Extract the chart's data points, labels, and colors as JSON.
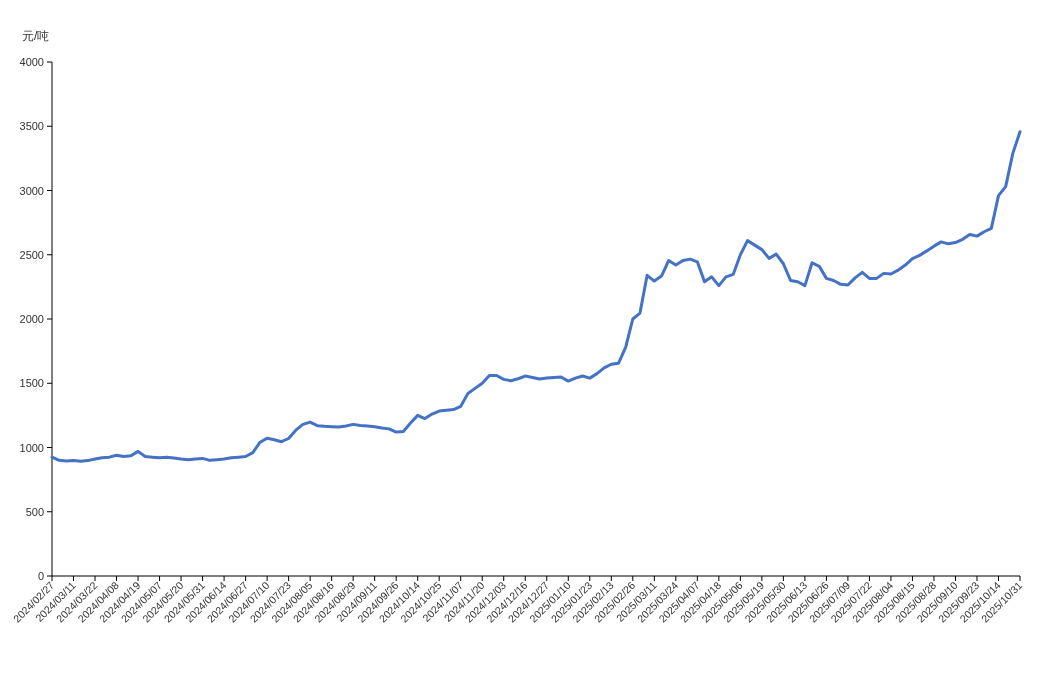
{
  "chart_data": {
    "type": "line",
    "ylabel": "元/吨",
    "ylim": [
      0,
      4000
    ],
    "yticks": [
      0,
      500,
      1000,
      1500,
      2000,
      2500,
      3000,
      3500,
      4000
    ],
    "categories": [
      "2024/02/27",
      null,
      null,
      "2024/03/11",
      null,
      null,
      "2024/03/22",
      null,
      null,
      "2024/04/08",
      null,
      null,
      "2024/04/19",
      null,
      null,
      "2024/05/07",
      null,
      null,
      "2024/05/20",
      null,
      null,
      "2024/05/31",
      null,
      null,
      "2024/06/14",
      null,
      null,
      "2024/06/27",
      null,
      null,
      "2024/07/10",
      null,
      null,
      "2024/07/23",
      null,
      null,
      "2024/08/05",
      null,
      null,
      "2024/08/16",
      null,
      null,
      "2024/08/29",
      null,
      null,
      "2024/09/11",
      null,
      null,
      "2024/09/26",
      null,
      null,
      "2024/10/14",
      null,
      null,
      "2024/10/25",
      null,
      null,
      "2024/11/07",
      null,
      null,
      "2024/11/20",
      null,
      null,
      "2024/12/03",
      null,
      null,
      "2024/12/16",
      null,
      null,
      "2024/12/27",
      null,
      null,
      "2025/01/10",
      null,
      null,
      "2025/01/23",
      null,
      null,
      "2025/02/13",
      null,
      null,
      "2025/02/26",
      null,
      null,
      "2025/03/11",
      null,
      null,
      "2025/03/24",
      null,
      null,
      "2025/04/07",
      null,
      null,
      "2025/04/18",
      null,
      null,
      "2025/05/06",
      null,
      null,
      "2025/05/19",
      null,
      null,
      "2025/05/30",
      null,
      null,
      "2025/06/13",
      null,
      null,
      "2025/06/26",
      null,
      null,
      "2025/07/09",
      null,
      null,
      "2025/07/22",
      null,
      null,
      "2025/08/04",
      null,
      null,
      "2025/08/15",
      null,
      null,
      "2025/08/28",
      null,
      null,
      "2025/09/10",
      null,
      null,
      "2025/09/23",
      null,
      null,
      "2025/10/14",
      null,
      null,
      "2025/10/31"
    ],
    "series": [
      {
        "color": "#4472c4",
        "values": [
          925,
          900,
          895,
          898,
          893,
          898,
          910,
          920,
          925,
          940,
          930,
          935,
          970,
          930,
          925,
          920,
          925,
          918,
          910,
          905,
          910,
          915,
          900,
          905,
          910,
          920,
          925,
          930,
          960,
          1040,
          1072,
          1060,
          1045,
          1070,
          1135,
          1180,
          1198,
          1170,
          1165,
          1162,
          1160,
          1168,
          1180,
          1172,
          1168,
          1162,
          1152,
          1145,
          1120,
          1125,
          1190,
          1250,
          1225,
          1260,
          1284,
          1290,
          1295,
          1320,
          1420,
          1460,
          1500,
          1560,
          1560,
          1530,
          1520,
          1535,
          1556,
          1545,
          1533,
          1540,
          1545,
          1548,
          1517,
          1540,
          1556,
          1540,
          1575,
          1620,
          1648,
          1655,
          1780,
          2000,
          2046,
          2340,
          2295,
          2334,
          2455,
          2420,
          2455,
          2466,
          2445,
          2290,
          2328,
          2260,
          2328,
          2347,
          2500,
          2610,
          2575,
          2540,
          2472,
          2505,
          2430,
          2300,
          2290,
          2260,
          2438,
          2410,
          2316,
          2300,
          2270,
          2265,
          2320,
          2363,
          2316,
          2316,
          2355,
          2350,
          2380,
          2420,
          2470,
          2495,
          2530,
          2567,
          2600,
          2585,
          2595,
          2620,
          2658,
          2645,
          2679,
          2705,
          2960,
          3030,
          3289,
          3457
        ]
      }
    ]
  }
}
